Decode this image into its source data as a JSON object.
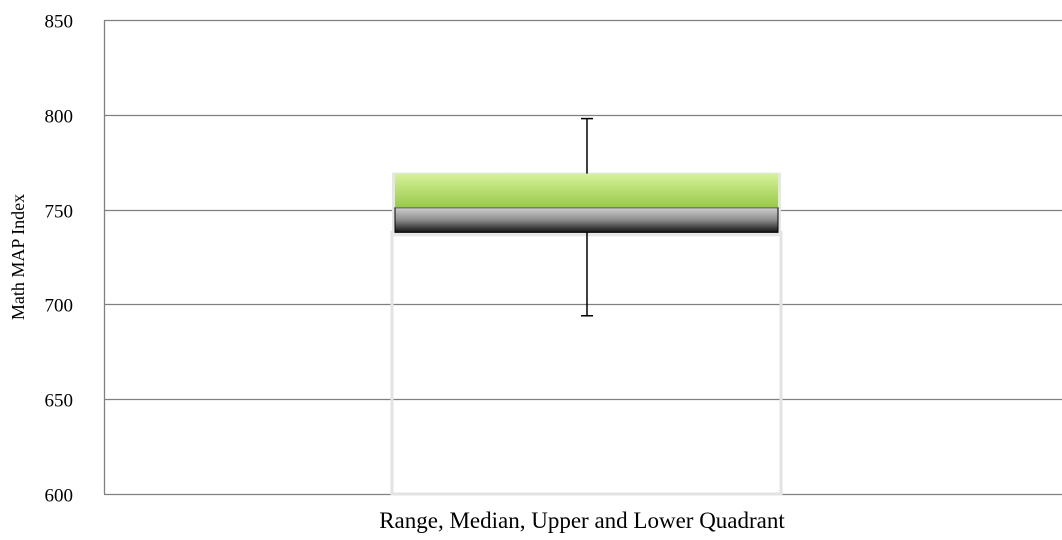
{
  "chart_data": {
    "type": "box",
    "title": "",
    "xlabel": "Range, Median, Upper and Lower Quadrant",
    "ylabel": "Math MAP Index",
    "ylim": [
      600,
      850
    ],
    "yticks": [
      600,
      650,
      700,
      750,
      800,
      850
    ],
    "ytick_labels": [
      "600",
      "650",
      "700",
      "750",
      "800",
      "850"
    ],
    "grid": true,
    "legend": "none",
    "box": {
      "min": 694,
      "lower_quartile": 738,
      "median": 751,
      "upper_quartile": 769,
      "max": 798
    },
    "colors": {
      "upper_box": "#a6d65a",
      "lower_box": "#8a8a8a",
      "grid": "#808080",
      "whisker": "#000000"
    }
  }
}
